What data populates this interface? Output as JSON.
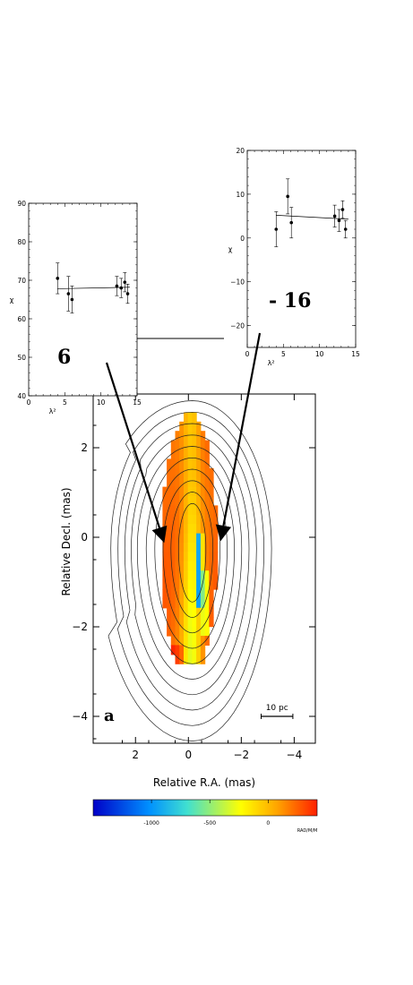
{
  "chart_data": [
    {
      "type": "heatmap",
      "panel_label": "a",
      "xlabel": "Relative R.A. (mas)",
      "ylabel": "Relative Decl. (mas)",
      "xlim": [
        3.6,
        -4.8
      ],
      "ylim": [
        -4.6,
        3.2
      ],
      "x_ticks": [
        2,
        0,
        -2,
        -4
      ],
      "y_ticks": [
        2,
        0,
        -2,
        -4
      ],
      "scale_bar": {
        "label": "10 pc",
        "length_mas": 1.2
      },
      "contour_levels": 10,
      "colorbar": {
        "ticks": [
          -1000,
          -500,
          0
        ],
        "tick_labels": [
          "-1000",
          "-500",
          "0"
        ],
        "range": [
          -1500,
          420
        ],
        "units": "RAD/M/M",
        "colors": [
          "#0000c8",
          "#0090ff",
          "#40e0d0",
          "#ffff00",
          "#ffa500",
          "#ff2000"
        ]
      },
      "annotations": [
        {
          "text": "6",
          "points_to": "left side of jet"
        },
        {
          "text": "- 16",
          "points_to": "right side of jet"
        }
      ]
    },
    {
      "type": "scatter",
      "name": "left inset",
      "xlabel": "λ²",
      "ylabel": "χ",
      "xlim": [
        0,
        15
      ],
      "ylim": [
        40,
        90
      ],
      "x_ticks": [
        0,
        5,
        10,
        15
      ],
      "y_ticks": [
        40,
        50,
        60,
        70,
        80,
        90
      ],
      "points": [
        {
          "x": 4.0,
          "y": 70.5,
          "err": 4.0
        },
        {
          "x": 5.5,
          "y": 66.5,
          "err": 4.5
        },
        {
          "x": 6.0,
          "y": 65.0,
          "err": 3.5
        },
        {
          "x": 12.2,
          "y": 68.5,
          "err": 2.5
        },
        {
          "x": 12.8,
          "y": 68.0,
          "err": 2.5
        },
        {
          "x": 13.3,
          "y": 69.5,
          "err": 2.5
        },
        {
          "x": 13.7,
          "y": 66.5,
          "err": 2.5
        }
      ],
      "fit": {
        "x": [
          4,
          14
        ],
        "y": [
          67.8,
          68.2
        ]
      }
    },
    {
      "type": "scatter",
      "name": "right inset",
      "xlabel": "λ²",
      "ylabel": "χ",
      "xlim": [
        0,
        15
      ],
      "ylim": [
        -25,
        20
      ],
      "x_ticks": [
        0,
        5,
        10,
        15
      ],
      "y_ticks": [
        20,
        10,
        0,
        -10,
        -20
      ],
      "points": [
        {
          "x": 4.0,
          "y": 2.0,
          "err": 4.0
        },
        {
          "x": 5.6,
          "y": 9.5,
          "err": 4.0
        },
        {
          "x": 6.1,
          "y": 3.5,
          "err": 3.5
        },
        {
          "x": 12.1,
          "y": 5.0,
          "err": 2.5
        },
        {
          "x": 12.7,
          "y": 4.0,
          "err": 2.5
        },
        {
          "x": 13.2,
          "y": 6.5,
          "err": 2.0
        },
        {
          "x": 13.6,
          "y": 2.0,
          "err": 2.0
        }
      ],
      "fit": {
        "x": [
          4,
          14
        ],
        "y": [
          5.2,
          4.3
        ]
      }
    }
  ]
}
